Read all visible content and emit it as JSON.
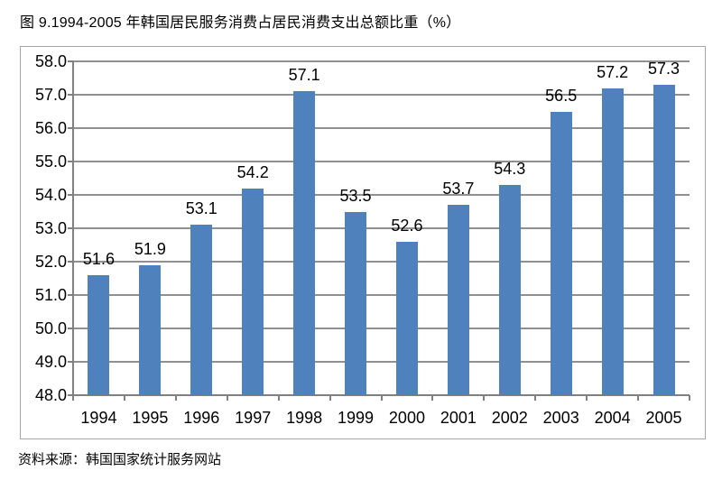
{
  "title": "图 9.1994-2005 年韩国居民服务消费占居民消费支出总额比重（%）",
  "source": "资料来源：韩国国家统计服务网站",
  "colors": {
    "bar": "#4F81BD",
    "gridline": "#909090",
    "axis": "#808080",
    "frame_border": "#A6A6A6",
    "text": "#000000"
  },
  "chart_data": {
    "type": "bar",
    "title": "图 9.1994-2005 年韩国居民服务消费占居民消费支出总额比重（%）",
    "categories": [
      "1994",
      "1995",
      "1996",
      "1997",
      "1998",
      "1999",
      "2000",
      "2001",
      "2002",
      "2003",
      "2004",
      "2005"
    ],
    "values": [
      51.6,
      51.9,
      53.1,
      54.2,
      57.1,
      53.5,
      52.6,
      53.7,
      54.3,
      56.5,
      57.2,
      57.3
    ],
    "xlabel": "",
    "ylabel": "",
    "ylim": [
      48.0,
      58.0
    ],
    "ytick_step": 1.0,
    "y_tick_labels": [
      "48.0",
      "49.0",
      "50.0",
      "51.0",
      "52.0",
      "53.0",
      "54.0",
      "55.0",
      "56.0",
      "57.0",
      "58.0"
    ],
    "grid": "horizontal",
    "legend": "none",
    "data_labels": "outside-end"
  }
}
